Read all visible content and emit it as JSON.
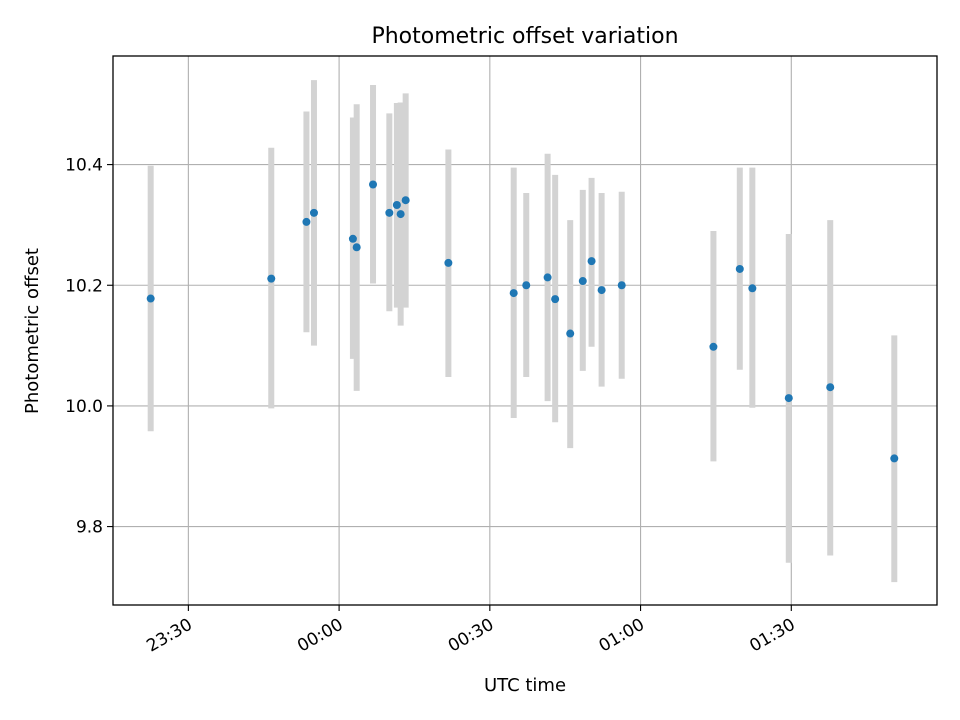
{
  "chart_data": {
    "type": "scatter",
    "title": "Photometric offset variation",
    "xlabel": "UTC time",
    "ylabel": "Photometric offset",
    "x_ticks": [
      "23:30",
      "00:00",
      "00:30",
      "01:00",
      "01:30"
    ],
    "y_ticks": [
      "9.8",
      "10.0",
      "10.2",
      "10.4"
    ],
    "xlim": [
      "23:15",
      "01:59"
    ],
    "ylim": [
      9.67,
      10.58
    ],
    "grid": true,
    "colors": {
      "point": "#1f77b4",
      "errorbar": "#d3d3d3",
      "grid": "#b0b0b0"
    },
    "series": [
      {
        "points": [
          {
            "t": "23:22:30",
            "y": 10.178,
            "lo": 9.958,
            "hi": 10.398
          },
          {
            "t": "23:46:30",
            "y": 10.211,
            "lo": 9.996,
            "hi": 10.428
          },
          {
            "t": "23:53:30",
            "y": 10.305,
            "lo": 10.122,
            "hi": 10.488
          },
          {
            "t": "23:55:00",
            "y": 10.32,
            "lo": 10.1,
            "hi": 10.54
          },
          {
            "t": "00:02:45",
            "y": 10.277,
            "lo": 10.078,
            "hi": 10.478
          },
          {
            "t": "00:03:30",
            "y": 10.263,
            "lo": 10.025,
            "hi": 10.5
          },
          {
            "t": "00:06:45",
            "y": 10.367,
            "lo": 10.203,
            "hi": 10.532
          },
          {
            "t": "00:10:00",
            "y": 10.32,
            "lo": 10.157,
            "hi": 10.485
          },
          {
            "t": "00:11:30",
            "y": 10.333,
            "lo": 10.163,
            "hi": 10.502
          },
          {
            "t": "00:12:15",
            "y": 10.318,
            "lo": 10.133,
            "hi": 10.503
          },
          {
            "t": "00:13:15",
            "y": 10.341,
            "lo": 10.163,
            "hi": 10.518
          },
          {
            "t": "00:21:45",
            "y": 10.237,
            "lo": 10.048,
            "hi": 10.425
          },
          {
            "t": "00:34:45",
            "y": 10.187,
            "lo": 9.98,
            "hi": 10.395
          },
          {
            "t": "00:37:15",
            "y": 10.2,
            "lo": 10.048,
            "hi": 10.353
          },
          {
            "t": "00:41:30",
            "y": 10.213,
            "lo": 10.008,
            "hi": 10.418
          },
          {
            "t": "00:43:00",
            "y": 10.177,
            "lo": 9.973,
            "hi": 10.383
          },
          {
            "t": "00:46:00",
            "y": 10.12,
            "lo": 9.93,
            "hi": 10.308
          },
          {
            "t": "00:48:30",
            "y": 10.207,
            "lo": 10.058,
            "hi": 10.358
          },
          {
            "t": "00:50:15",
            "y": 10.24,
            "lo": 10.098,
            "hi": 10.378
          },
          {
            "t": "00:52:15",
            "y": 10.192,
            "lo": 10.032,
            "hi": 10.353
          },
          {
            "t": "00:56:15",
            "y": 10.2,
            "lo": 10.045,
            "hi": 10.355
          },
          {
            "t": "01:14:30",
            "y": 10.098,
            "lo": 9.908,
            "hi": 10.29
          },
          {
            "t": "01:19:45",
            "y": 10.227,
            "lo": 10.06,
            "hi": 10.395
          },
          {
            "t": "01:22:15",
            "y": 10.195,
            "lo": 9.997,
            "hi": 10.395
          },
          {
            "t": "01:29:30",
            "y": 10.013,
            "lo": 9.74,
            "hi": 10.285
          },
          {
            "t": "01:37:45",
            "y": 10.031,
            "lo": 9.752,
            "hi": 10.308
          },
          {
            "t": "01:50:30",
            "y": 9.913,
            "lo": 9.708,
            "hi": 10.117
          }
        ]
      }
    ]
  }
}
